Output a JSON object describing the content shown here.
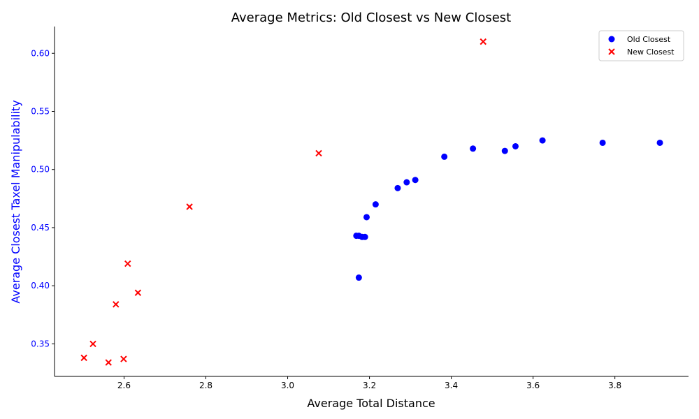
{
  "chart_data": {
    "type": "scatter",
    "title": "Average Metrics: Old Closest vs New Closest",
    "xlabel": "Average Total Distance",
    "ylabel": "Average Closest Taxel Manipulability",
    "xlim": [
      2.43,
      3.98
    ],
    "ylim": [
      0.322,
      0.623
    ],
    "x_ticks": [
      2.6,
      2.8,
      3.0,
      3.2,
      3.4,
      3.6,
      3.8
    ],
    "x_tick_labels": [
      "2.6",
      "2.8",
      "3.0",
      "3.2",
      "3.4",
      "3.6",
      "3.8"
    ],
    "y_ticks": [
      0.35,
      0.4,
      0.45,
      0.5,
      0.55,
      0.6
    ],
    "y_tick_labels": [
      "0.35",
      "0.40",
      "0.45",
      "0.50",
      "0.55",
      "0.60"
    ],
    "grid": false,
    "legend_position": "top-right",
    "ylabel_color": "#0000ff",
    "series": [
      {
        "name": "Old Closest",
        "marker": "circle",
        "color": "#0000ff",
        "points": [
          [
            3.168,
            0.443
          ],
          [
            3.174,
            0.443
          ],
          [
            3.182,
            0.442
          ],
          [
            3.189,
            0.442
          ],
          [
            3.174,
            0.407
          ],
          [
            3.193,
            0.459
          ],
          [
            3.215,
            0.47
          ],
          [
            3.269,
            0.484
          ],
          [
            3.291,
            0.489
          ],
          [
            3.312,
            0.491
          ],
          [
            3.383,
            0.511
          ],
          [
            3.453,
            0.518
          ],
          [
            3.531,
            0.516
          ],
          [
            3.557,
            0.52
          ],
          [
            3.623,
            0.525
          ],
          [
            3.77,
            0.523
          ],
          [
            3.91,
            0.523
          ]
        ]
      },
      {
        "name": "New Closest",
        "marker": "x",
        "color": "#ff0000",
        "points": [
          [
            3.478,
            0.61
          ],
          [
            3.076,
            0.514
          ],
          [
            2.76,
            0.468
          ],
          [
            2.609,
            0.419
          ],
          [
            2.634,
            0.394
          ],
          [
            2.58,
            0.384
          ],
          [
            2.524,
            0.35
          ],
          [
            2.502,
            0.338
          ],
          [
            2.562,
            0.334
          ],
          [
            2.599,
            0.337
          ]
        ]
      }
    ]
  }
}
